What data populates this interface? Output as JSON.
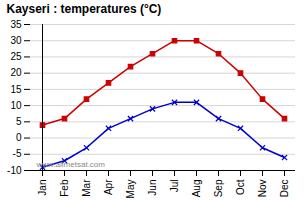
{
  "chart_data": {
    "type": "line",
    "title": "Kayseri : temperatures (°C)",
    "categories": [
      "Jan",
      "Feb",
      "Mar",
      "Apr",
      "May",
      "Jun",
      "Jul",
      "Aug",
      "Sep",
      "Oct",
      "Nov",
      "Dec"
    ],
    "series": [
      {
        "color": "#cc0000",
        "marker": "square",
        "values": [
          4,
          6,
          12,
          17,
          22,
          26,
          30,
          30,
          26,
          20,
          12,
          6
        ]
      },
      {
        "color": "#0000cc",
        "marker": "x",
        "values": [
          -9,
          -7,
          -3,
          3,
          6,
          9,
          11,
          11,
          6,
          3,
          -3,
          -6
        ]
      }
    ],
    "ylim": [
      -10,
      35
    ],
    "yticks": [
      -10,
      -5,
      0,
      5,
      10,
      15,
      20,
      25,
      30,
      35
    ],
    "grid": true,
    "annotations": [
      "www.allmetsat.com"
    ]
  }
}
